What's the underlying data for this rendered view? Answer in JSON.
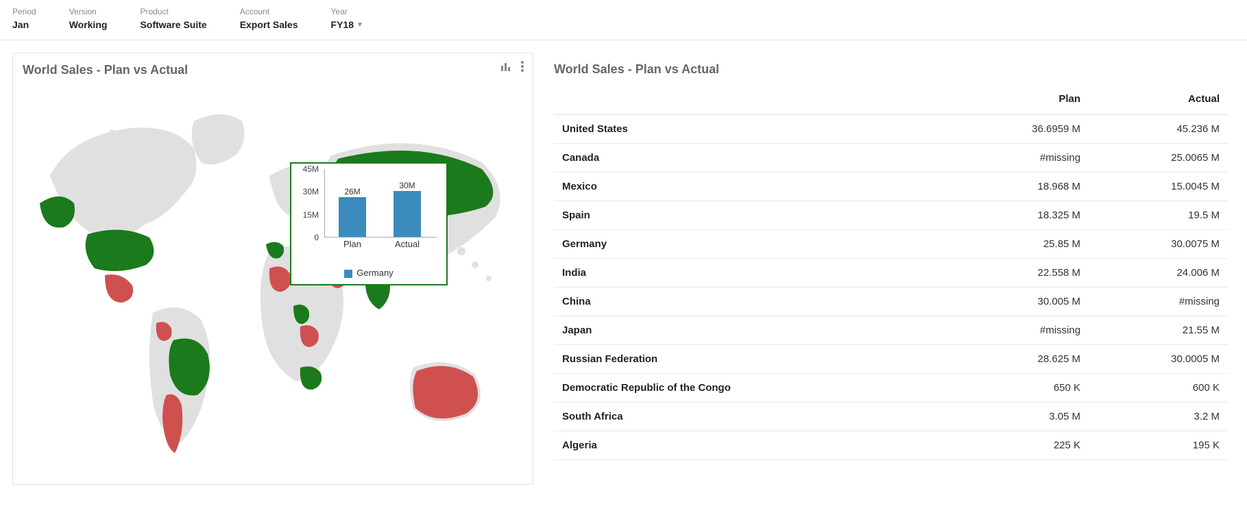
{
  "filters": [
    {
      "label": "Period",
      "value": "Jan"
    },
    {
      "label": "Version",
      "value": "Working"
    },
    {
      "label": "Product",
      "value": "Software Suite"
    },
    {
      "label": "Account",
      "value": "Export Sales"
    },
    {
      "label": "Year",
      "value": "FY18",
      "dropdown": true
    }
  ],
  "leftPanel": {
    "title": "World Sales - Plan vs Actual",
    "map": {
      "background_color": "#e0e0e0",
      "highlight_green": "#1b7a1b",
      "highlight_red": "#d05050",
      "green_countries": [
        "United States",
        "Brazil",
        "Spain",
        "Germany",
        "Nigeria",
        "South Africa",
        "India",
        "Russian Federation",
        "China (partial)"
      ],
      "red_countries": [
        "Mexico",
        "Colombia",
        "Argentina",
        "Chile",
        "Algeria",
        "Saudi Arabia",
        "DR Congo",
        "Australia"
      ]
    },
    "tooltip": {
      "country": "Germany",
      "type": "bar",
      "categories": [
        "Plan",
        "Actual"
      ],
      "values": [
        26,
        30
      ],
      "value_labels": [
        "26M",
        "30M"
      ],
      "y_ticks": [
        0,
        "15M",
        "30M",
        "45M"
      ],
      "y_max": 45,
      "bar_color": "#3b8bbd",
      "border_color": "#1b7a1b",
      "background": "#ffffff"
    }
  },
  "rightPanel": {
    "title": "World Sales - Plan vs Actual",
    "columns": [
      "",
      "Plan",
      "Actual"
    ],
    "rows": [
      {
        "country": "United States",
        "plan": "36.6959 M",
        "actual": "45.236 M"
      },
      {
        "country": "Canada",
        "plan": "#missing",
        "actual": "25.0065 M"
      },
      {
        "country": "Mexico",
        "plan": "18.968 M",
        "actual": "15.0045 M"
      },
      {
        "country": "Spain",
        "plan": "18.325 M",
        "actual": "19.5 M"
      },
      {
        "country": "Germany",
        "plan": "25.85 M",
        "actual": "30.0075 M"
      },
      {
        "country": "India",
        "plan": "22.558 M",
        "actual": "24.006 M"
      },
      {
        "country": "China",
        "plan": "30.005 M",
        "actual": "#missing"
      },
      {
        "country": "Japan",
        "plan": "#missing",
        "actual": "21.55 M"
      },
      {
        "country": "Russian Federation",
        "plan": "28.625 M",
        "actual": "30.0005 M"
      },
      {
        "country": "Democratic Republic of the Congo",
        "plan": "650 K",
        "actual": "600 K"
      },
      {
        "country": "South Africa",
        "plan": "3.05 M",
        "actual": "3.2 M"
      },
      {
        "country": "Algeria",
        "plan": "225 K",
        "actual": "195 K"
      }
    ]
  }
}
